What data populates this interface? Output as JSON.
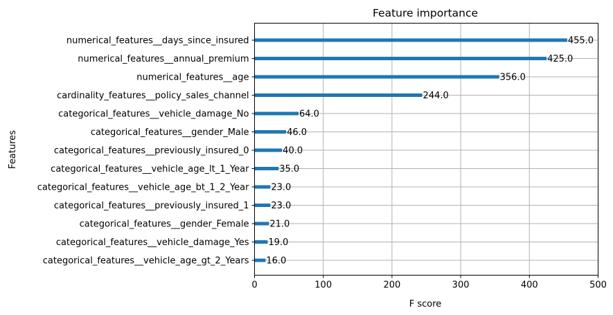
{
  "chart_data": {
    "type": "bar",
    "orientation": "horizontal",
    "title": "Feature importance",
    "xlabel": "F score",
    "ylabel": "Features",
    "xlim": [
      0,
      500
    ],
    "xticks": [
      "0",
      "100",
      "200",
      "300",
      "400",
      "500"
    ],
    "grid": true,
    "bar_color": "#1f77b4",
    "categories": [
      "numerical_features__days_since_insured",
      "numerical_features__annual_premium",
      "numerical_features__age",
      "cardinality_features__policy_sales_channel",
      "categorical_features__vehicle_damage_No",
      "categorical_features__gender_Male",
      "categorical_features__previously_insured_0",
      "categorical_features__vehicle_age_lt_1_Year",
      "categorical_features__vehicle_age_bt_1_2_Year",
      "categorical_features__previously_insured_1",
      "categorical_features__gender_Female",
      "categorical_features__vehicle_damage_Yes",
      "categorical_features__vehicle_age_gt_2_Years"
    ],
    "values": [
      455,
      425,
      356,
      244,
      64,
      46,
      40,
      35,
      23,
      23,
      21,
      19,
      16
    ],
    "value_labels": [
      "455.0",
      "425.0",
      "356.0",
      "244.0",
      "64.0",
      "46.0",
      "40.0",
      "35.0",
      "23.0",
      "23.0",
      "21.0",
      "19.0",
      "16.0"
    ]
  }
}
